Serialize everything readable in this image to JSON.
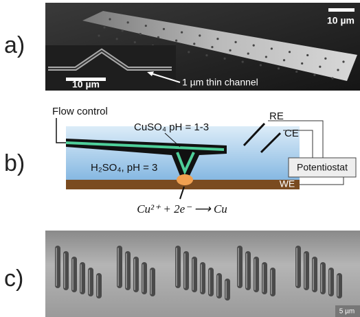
{
  "panel_a": {
    "label": "a)",
    "scale_bar": "10 µm",
    "inset_scale_bar": "10 µm",
    "annotation": "1 µm thin channel"
  },
  "panel_b": {
    "label": "b)",
    "flow_control": "Flow control",
    "upper_solution": "CuSO₄ pH = 1-3",
    "lower_solution": "H₂SO₄, pH = 3",
    "reference_electrode": "RE",
    "counter_electrode": "CE",
    "instrument": "Potentiostat",
    "working_electrode": "WE",
    "reaction": "Cu²⁺ + 2e⁻ ⟶ Cu"
  },
  "panel_c": {
    "label": "c)",
    "scale_bar": "5 µm"
  }
}
